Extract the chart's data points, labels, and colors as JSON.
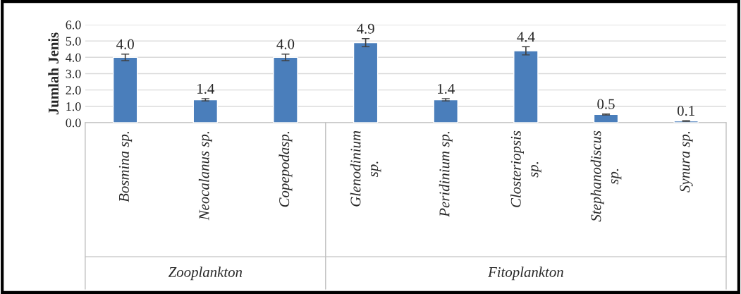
{
  "chart_data": {
    "type": "bar",
    "ylabel": "Jumlah Jenis",
    "categories": [
      "Bosmina sp.",
      "Neocalanus sp.",
      "Copepodasp.",
      "Glenodinium sp.",
      "Peridinium sp.",
      "Closteriopsis sp.",
      "Stephanodiscus sp.",
      "Synura sp."
    ],
    "values": [
      4.0,
      1.4,
      4.0,
      4.9,
      1.4,
      4.4,
      0.5,
      0.1
    ],
    "errors": [
      0.2,
      0.07,
      0.2,
      0.25,
      0.07,
      0.25,
      0.03,
      0.02
    ],
    "value_labels": [
      "4.0",
      "1.4",
      "4.0",
      "4.9",
      "1.4",
      "4.4",
      "0.5",
      "0.1"
    ],
    "color": "#4a7ebb",
    "ylim": [
      0,
      6
    ],
    "yticks": [
      {
        "value": 0,
        "label": "0.0"
      },
      {
        "value": 1,
        "label": "1.0"
      },
      {
        "value": 2,
        "label": "2.0"
      },
      {
        "value": 3,
        "label": "3.0"
      },
      {
        "value": 4,
        "label": "4.0"
      },
      {
        "value": 5,
        "label": "5.0"
      },
      {
        "value": 6,
        "label": "6.0"
      }
    ],
    "grid": "y",
    "annotations": [
      "Zooplankton",
      "Fitoplankton"
    ]
  }
}
